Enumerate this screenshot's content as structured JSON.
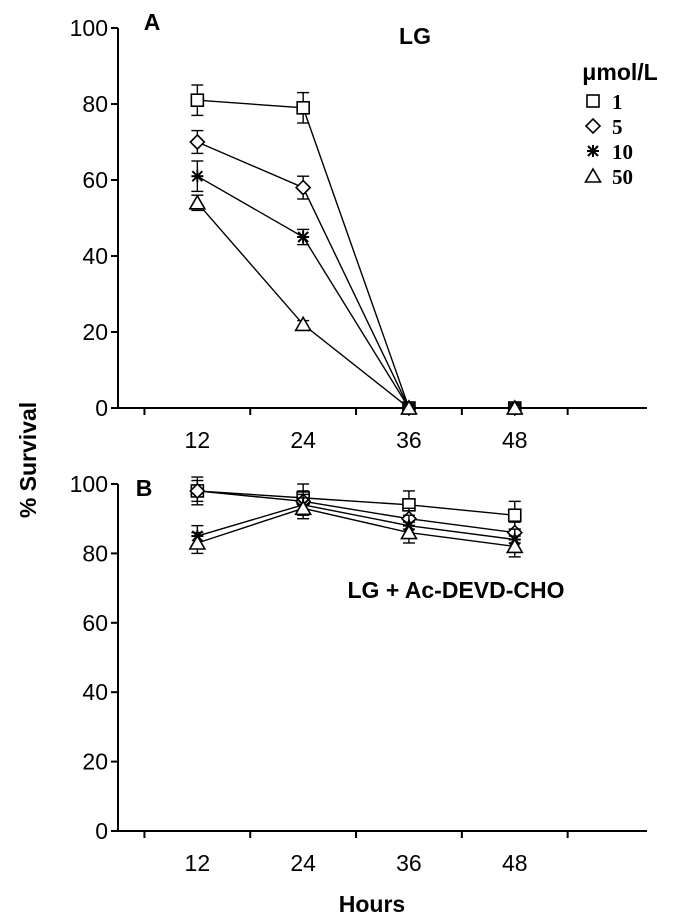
{
  "figure": {
    "ylabel": "% Survival",
    "xlabel": "Hours",
    "legend_title": "μmol/L"
  },
  "chart_data": [
    {
      "type": "line",
      "panel_label": "A",
      "title": "LG",
      "x": [
        12,
        24,
        36,
        48
      ],
      "xlim": [
        3,
        63
      ],
      "ylim": [
        0,
        100
      ],
      "y_ticks": [
        0,
        20,
        40,
        60,
        80,
        100
      ],
      "grid": false,
      "legend_placement": "top-right",
      "series": [
        {
          "name": "1",
          "marker": "square",
          "values": [
            81,
            79,
            0,
            0
          ],
          "errors": [
            4,
            4,
            0,
            0
          ]
        },
        {
          "name": "5",
          "marker": "diamond",
          "values": [
            70,
            58,
            0,
            0
          ],
          "errors": [
            3,
            3,
            0,
            0
          ]
        },
        {
          "name": "10",
          "marker": "asterisk",
          "values": [
            61,
            45,
            0,
            0
          ],
          "errors": [
            4,
            2,
            0,
            0
          ]
        },
        {
          "name": "50",
          "marker": "triangle",
          "values": [
            54,
            22,
            0,
            0
          ],
          "errors": [
            2,
            1,
            0,
            0
          ]
        }
      ]
    },
    {
      "type": "line",
      "panel_label": "B",
      "annotation": "LG + Ac-DEVD-CHO",
      "x": [
        12,
        24,
        36,
        48
      ],
      "xlim": [
        3,
        63
      ],
      "ylim": [
        0,
        100
      ],
      "y_ticks": [
        0,
        20,
        40,
        60,
        80,
        100
      ],
      "grid": false,
      "series": [
        {
          "name": "1",
          "marker": "square",
          "values": [
            98,
            96,
            94,
            91
          ],
          "errors": [
            4,
            4,
            4,
            4
          ]
        },
        {
          "name": "5",
          "marker": "diamond",
          "values": [
            98,
            95,
            90,
            86
          ],
          "errors": [
            3,
            3,
            3,
            3
          ]
        },
        {
          "name": "10",
          "marker": "asterisk",
          "values": [
            85,
            94,
            88,
            84
          ],
          "errors": [
            3,
            3,
            3,
            3
          ]
        },
        {
          "name": "50",
          "marker": "triangle",
          "values": [
            83,
            93,
            86,
            82
          ],
          "errors": [
            3,
            3,
            3,
            3
          ]
        }
      ]
    }
  ]
}
